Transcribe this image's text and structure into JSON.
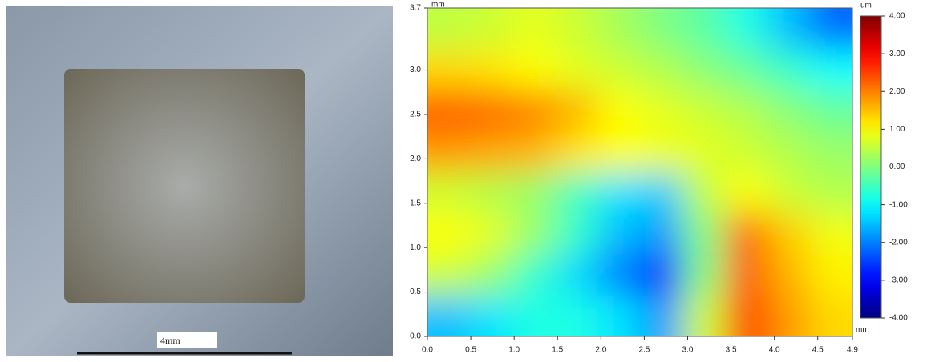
{
  "photo": {
    "scale_label": "4mm"
  },
  "chart_data": {
    "type": "heatmap",
    "x_unit": "mm",
    "y_unit": "mm",
    "colorbar_unit": "um",
    "x": [
      0.245,
      0.735,
      1.225,
      1.715,
      2.205,
      2.695,
      3.185,
      3.675,
      4.165,
      4.655
    ],
    "y": [
      3.469,
      3.006,
      2.544,
      2.081,
      1.619,
      1.156,
      0.694,
      0.231
    ],
    "z": [
      [
        0.5,
        0.6,
        0.8,
        0.6,
        0.3,
        0,
        -0.3,
        -0.8,
        -1.5,
        -2.2
      ],
      [
        1.3,
        1.2,
        1.0,
        0.8,
        0.6,
        0.4,
        0.1,
        -0.2,
        -0.6,
        -1.0
      ],
      [
        2.3,
        2.2,
        2.0,
        1.6,
        1.0,
        0.8,
        0.6,
        0.4,
        0.1,
        -0.2
      ],
      [
        1.8,
        1.7,
        1.6,
        1.2,
        1.0,
        0.9,
        0.8,
        0.6,
        0.4,
        0.2
      ],
      [
        0.6,
        0.4,
        0.2,
        -0.5,
        -1.2,
        -1.4,
        0.5,
        1.0,
        0.6,
        0.4
      ],
      [
        1.0,
        0.8,
        0.2,
        -0.6,
        -1.5,
        -1.8,
        0,
        2.2,
        1.4,
        0.9
      ],
      [
        0.6,
        0.2,
        -0.6,
        -1.3,
        -2.0,
        -3.0,
        0,
        2.3,
        1.6,
        1.1
      ],
      [
        -1.5,
        -1.2,
        -0.8,
        -0.8,
        -1.2,
        -1.8,
        0.6,
        2.5,
        1.8,
        1.3
      ]
    ],
    "xlim": [
      0,
      4.9
    ],
    "ylim": [
      0,
      3.7
    ],
    "zlim": [
      -4,
      4
    ],
    "xticks": [
      {
        "value": 0,
        "label": "0.0"
      },
      0.5,
      {
        "value": 1,
        "label": "1.0"
      },
      1.5,
      {
        "value": 2,
        "label": "2.0"
      },
      2.5,
      {
        "value": 3,
        "label": "3.0"
      },
      3.5,
      {
        "value": 4,
        "label": "4.0"
      },
      4.5,
      4.9
    ],
    "yticks": [
      {
        "value": 0,
        "label": "0.0"
      },
      0.5,
      {
        "value": 1,
        "label": "1.0"
      },
      1.5,
      {
        "value": 2,
        "label": "2.0"
      },
      2.5,
      {
        "value": 3,
        "label": "3.0"
      },
      3.7
    ],
    "zticks": [
      {
        "value": 4,
        "label": "4.00"
      },
      {
        "value": 3,
        "label": "3.00"
      },
      {
        "value": 2,
        "label": "2.00"
      },
      {
        "value": 1,
        "label": "1.00"
      },
      {
        "value": 0,
        "label": "0.00"
      },
      {
        "value": -1,
        "label": "-1.00"
      },
      {
        "value": -2,
        "label": "-2.00"
      },
      {
        "value": -3,
        "label": "-3.00"
      },
      {
        "value": -4,
        "label": "-4.00"
      }
    ],
    "colormap": "jet"
  }
}
